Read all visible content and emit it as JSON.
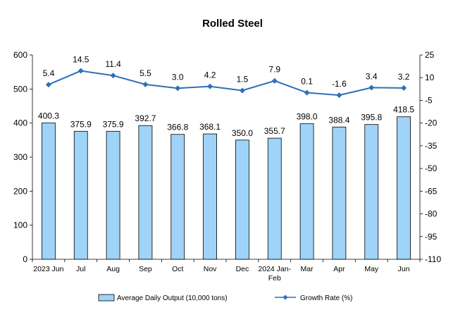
{
  "chart_data": {
    "type": "bar+line",
    "title": "Rolled Steel",
    "categories": [
      "2023 Jun",
      "Jul",
      "Aug",
      "Sep",
      "Oct",
      "Nov",
      "Dec",
      "2024 Jan-Feb",
      "Mar",
      "Apr",
      "May",
      "Jun"
    ],
    "series": [
      {
        "name": "Average Daily Output (10,000 tons)",
        "type": "bar",
        "axis": "left",
        "color": "#9fd3f7",
        "values": [
          400.3,
          375.9,
          375.9,
          392.7,
          366.8,
          368.1,
          350.0,
          355.7,
          398.0,
          388.4,
          395.8,
          418.5
        ],
        "labels": [
          "400.3",
          "375.9",
          "375.9",
          "392.7",
          "366.8",
          "368.1",
          "350.0",
          "355.7",
          "398.0",
          "388.4",
          "395.8",
          "418.5"
        ]
      },
      {
        "name": "Growth Rate (%)",
        "type": "line",
        "axis": "right",
        "color": "#2e6fb5",
        "values": [
          5.4,
          14.5,
          11.4,
          5.5,
          3.0,
          4.2,
          1.5,
          7.9,
          0.1,
          -1.6,
          3.4,
          3.2
        ],
        "labels": [
          "5.4",
          "14.5",
          "11.4",
          "5.5",
          "3.0",
          "4.2",
          "1.5",
          "7.9",
          "0.1",
          "-1.6",
          "3.4",
          "3.2"
        ]
      }
    ],
    "y_left": {
      "ylim": [
        0,
        600
      ],
      "ticks": [
        "0",
        "100",
        "200",
        "300",
        "400",
        "500",
        "600"
      ]
    },
    "y_right": {
      "ylim": [
        -110,
        25
      ],
      "ticks": [
        "25",
        "10",
        "-5",
        "-20",
        "-35",
        "-50",
        "-65",
        "-80",
        "-95",
        "-110"
      ]
    },
    "grid": false,
    "legend_position": "bottom"
  }
}
